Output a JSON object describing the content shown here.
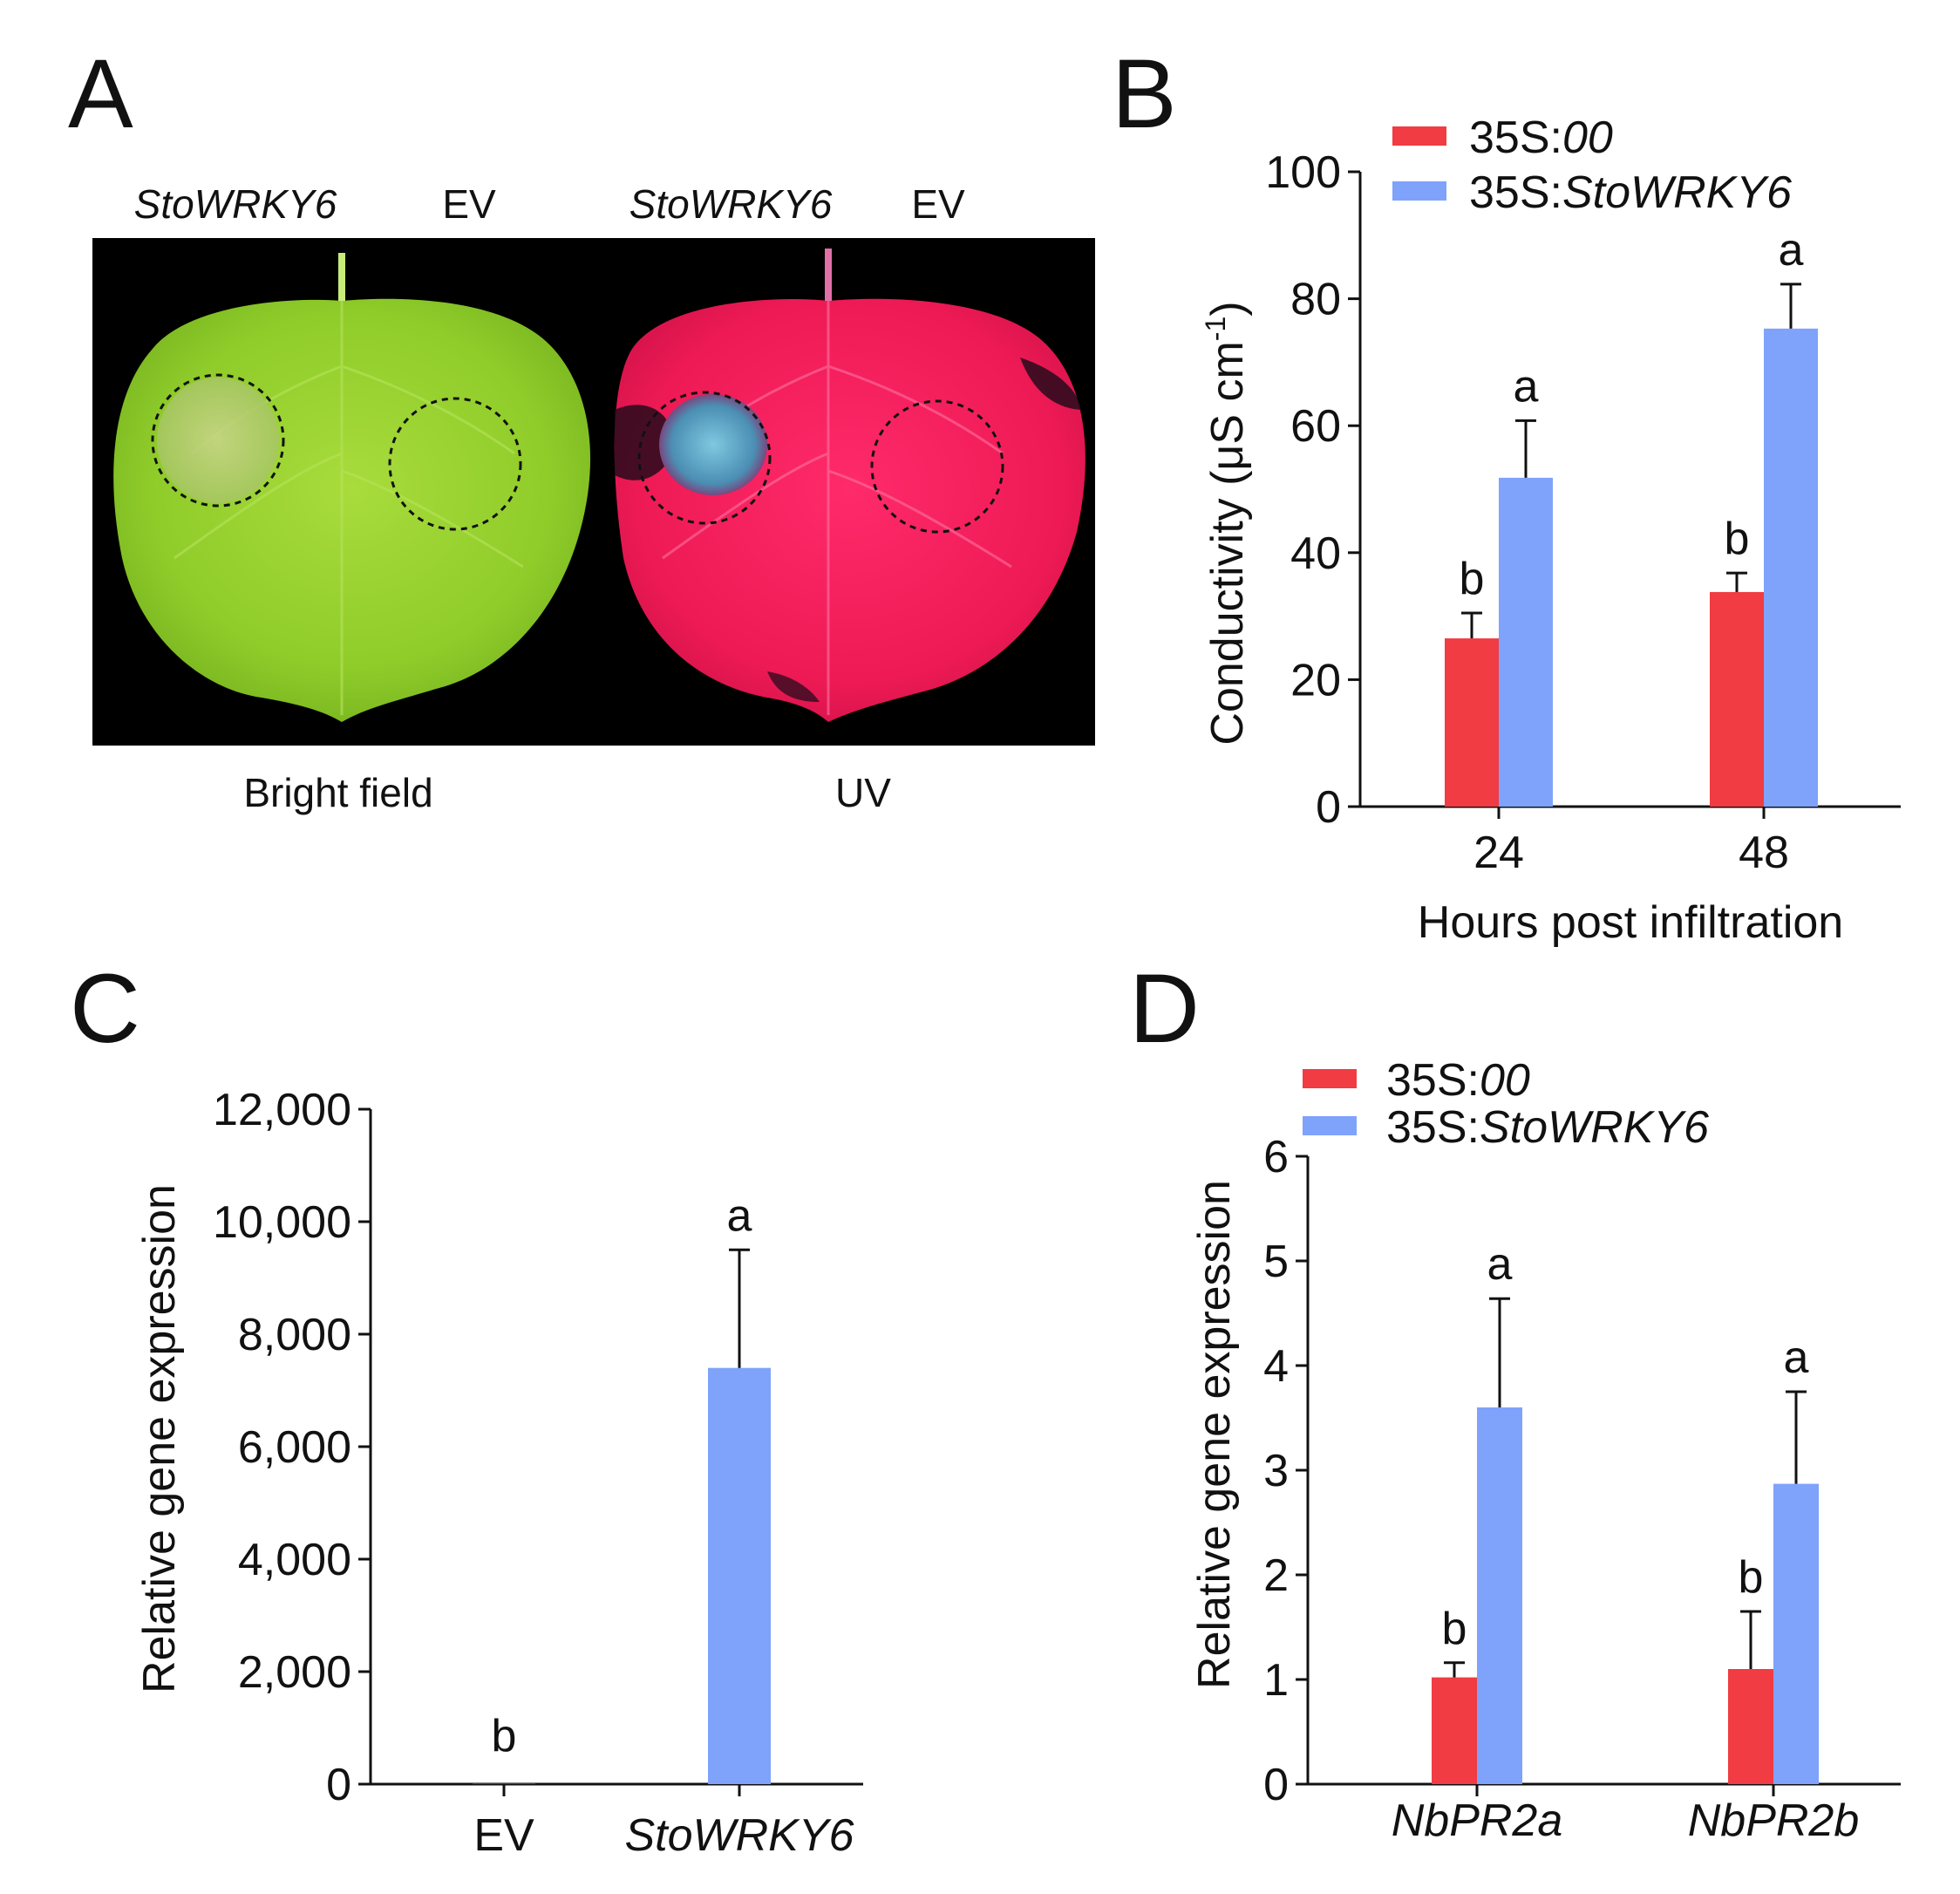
{
  "colors": {
    "control": "#f03c42",
    "treatment": "#7fa2fb",
    "ink": "#111111"
  },
  "panels": {
    "A": {
      "letter": "A",
      "top_labels": [
        "StoWRKY6",
        "EV",
        "StoWRKY6",
        "EV"
      ],
      "bottom_labels": [
        "Bright field",
        "UV"
      ]
    },
    "B": {
      "letter": "B"
    },
    "C": {
      "letter": "C"
    },
    "D": {
      "letter": "D"
    }
  },
  "chart_data": [
    {
      "id": "B",
      "type": "bar",
      "categories": [
        "24",
        "48"
      ],
      "series": [
        {
          "name": "35S:00",
          "prefix": "35S:",
          "name_italic": "00",
          "color": "#f03c42",
          "values": [
            26.5,
            33.8
          ],
          "errors": [
            4,
            3
          ],
          "letters": [
            "b",
            "b"
          ]
        },
        {
          "name": "35S:StoWRKY6",
          "prefix": "35S:",
          "name_italic": "StoWRKY6",
          "color": "#7fa2fb",
          "values": [
            51.8,
            75.3
          ],
          "errors": [
            9,
            7
          ],
          "letters": [
            "a",
            "a"
          ]
        }
      ],
      "xlabel": "Hours post infiltration",
      "ylabel_main": "Conductivity (μS cm",
      "ylabel_sup": "-1",
      "ylabel_close": ")",
      "ylim": [
        0,
        100
      ],
      "yticks": [
        0,
        20,
        40,
        60,
        80,
        100
      ],
      "ytick_labels": [
        "0",
        "20",
        "40",
        "60",
        "80",
        "100"
      ],
      "legend": "top-left"
    },
    {
      "id": "C",
      "type": "bar",
      "categories": [
        "EV",
        "StoWRKY6"
      ],
      "category_italic": [
        false,
        true
      ],
      "series": [
        {
          "name": "expression",
          "colors": [
            "#7fa2fb",
            "#7fa2fb"
          ],
          "values": [
            5,
            7400
          ],
          "errors": [
            0,
            2100
          ],
          "letters": [
            "b",
            "a"
          ]
        }
      ],
      "xlabel": "",
      "ylabel": "Relative gene expression",
      "ylim": [
        0,
        12000
      ],
      "yticks": [
        0,
        2000,
        4000,
        6000,
        8000,
        10000,
        12000
      ],
      "ytick_labels": [
        "0",
        "2,000",
        "4,000",
        "6,000",
        "8,000",
        "10,000",
        "12,000"
      ]
    },
    {
      "id": "D",
      "type": "bar",
      "categories": [
        "NbPR2a",
        "NbPR2b"
      ],
      "series": [
        {
          "name": "35S:00",
          "prefix": "35S:",
          "name_italic": "00",
          "color": "#f03c42",
          "values": [
            1.02,
            1.1
          ],
          "errors": [
            0.14,
            0.55
          ],
          "letters": [
            "b",
            "b"
          ]
        },
        {
          "name": "35S:StoWRKY6",
          "prefix": "35S:",
          "name_italic": "StoWRKY6",
          "color": "#7fa2fb",
          "values": [
            3.6,
            2.87
          ],
          "errors": [
            1.04,
            0.88
          ],
          "letters": [
            "a",
            "a"
          ]
        }
      ],
      "xlabel": "",
      "ylabel": "Relative gene expression",
      "ylim": [
        0,
        6
      ],
      "yticks": [
        0,
        1,
        2,
        3,
        4,
        5,
        6
      ],
      "ytick_labels": [
        "0",
        "1",
        "2",
        "3",
        "4",
        "5",
        "6"
      ],
      "legend": "top-left"
    }
  ]
}
